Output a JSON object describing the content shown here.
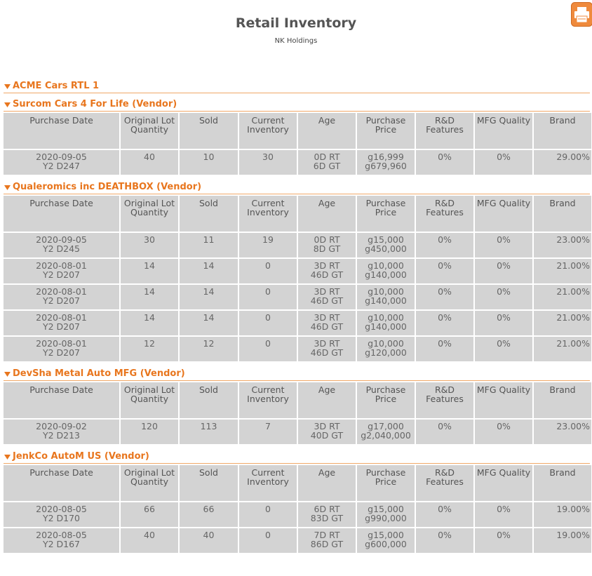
{
  "header": {
    "title": "Retail Inventory",
    "subtitle": "NK Holdings"
  },
  "columns": [
    "Purchase Date",
    "Original Lot Quantity",
    "Sold",
    "Current Inventory",
    "Age",
    "Purchase Price",
    "R&D Features",
    "MFG Quality",
    "Brand"
  ],
  "store": {
    "name": "ACME Cars RTL 1",
    "vendors": [
      {
        "name": "Surcom Cars 4 For Life (Vendor)",
        "rows": [
          [
            "2020-09-05\nY2 D247",
            "40",
            "10",
            "30",
            "0D RT\n6D GT",
            "g16,999\ng679,960",
            "0%",
            "0%",
            "29.00%"
          ]
        ]
      },
      {
        "name": "Qualeromics inc DEATHBOX (Vendor)",
        "rows": [
          [
            "2020-09-05\nY2 D245",
            "30",
            "11",
            "19",
            "0D RT\n8D GT",
            "g15,000\ng450,000",
            "0%",
            "0%",
            "23.00%"
          ],
          [
            "2020-08-01\nY2 D207",
            "14",
            "14",
            "0",
            "3D RT\n46D GT",
            "g10,000\ng140,000",
            "0%",
            "0%",
            "21.00%"
          ],
          [
            "2020-08-01\nY2 D207",
            "14",
            "14",
            "0",
            "3D RT\n46D GT",
            "g10,000\ng140,000",
            "0%",
            "0%",
            "21.00%"
          ],
          [
            "2020-08-01\nY2 D207",
            "14",
            "14",
            "0",
            "3D RT\n46D GT",
            "g10,000\ng140,000",
            "0%",
            "0%",
            "21.00%"
          ],
          [
            "2020-08-01\nY2 D207",
            "12",
            "12",
            "0",
            "3D RT\n46D GT",
            "g10,000\ng120,000",
            "0%",
            "0%",
            "21.00%"
          ]
        ]
      },
      {
        "name": "DevSha Metal Auto MFG (Vendor)",
        "rows": [
          [
            "2020-09-02\nY2 D213",
            "120",
            "113",
            "7",
            "3D RT\n40D GT",
            "g17,000\ng2,040,000",
            "0%",
            "0%",
            "23.00%"
          ]
        ]
      },
      {
        "name": "JenkCo AutoM US (Vendor)",
        "rows": [
          [
            "2020-08-05\nY2 D170",
            "66",
            "66",
            "0",
            "6D RT\n83D GT",
            "g15,000\ng990,000",
            "0%",
            "0%",
            "19.00%"
          ],
          [
            "2020-08-05\nY2 D167",
            "40",
            "40",
            "0",
            "7D RT\n86D GT",
            "g15,000\ng600,000",
            "0%",
            "0%",
            "19.00%"
          ]
        ]
      }
    ]
  }
}
